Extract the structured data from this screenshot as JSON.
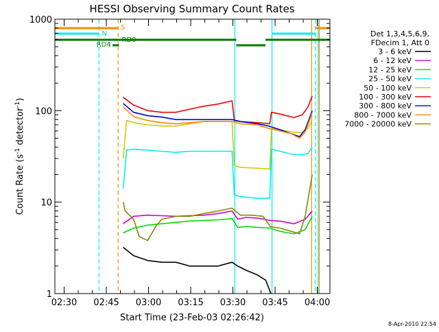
{
  "chart_data": {
    "type": "line",
    "title": "HESSI Observing Summary Count Rates",
    "xlabel": "Start Time (23-Feb-03 02:26:42)",
    "ylabel_main": "Count Rate (s",
    "ylabel_sup1": "-1",
    "ylabel_mid": " detector",
    "ylabel_sup2": "-1",
    "ylabel_end": ")",
    "footer": "8-Apr-2010 22:54",
    "x_ticks": [
      "02:30",
      "02:45",
      "03:00",
      "03:15",
      "03:30",
      "03:45",
      "04:00"
    ],
    "x_tick_minutes": [
      3.3,
      18.3,
      33.3,
      48.3,
      63.3,
      78.3,
      93.3
    ],
    "xlim_minutes": [
      0,
      97.8
    ],
    "y_scale": "log",
    "ylim": [
      1,
      1000
    ],
    "y_ticks": [
      "1",
      "10",
      "100",
      "1000"
    ],
    "y_tick_values": [
      1,
      10,
      100,
      1000
    ],
    "legend_header": [
      "Det 1,3,4,5,6,9,",
      "FDecim 1, Att 0"
    ],
    "legend_position": "right",
    "series": [
      {
        "name": "3 - 6 keV",
        "color": "#000000",
        "x": [
          24.3,
          28,
          33,
          38,
          43,
          48,
          53,
          58,
          63,
          65,
          68,
          72,
          75,
          76.8
        ],
        "y": [
          3.2,
          2.6,
          2.3,
          2.2,
          2.2,
          2.0,
          2.0,
          2.0,
          2.2,
          2.0,
          1.8,
          1.6,
          1.4,
          1.0
        ]
      },
      {
        "name": "6 - 12 keV",
        "color": "#cc00cc",
        "x": [
          24.3,
          28,
          33,
          38,
          43,
          48,
          53,
          58,
          63,
          65,
          68,
          72,
          76.6,
          80,
          85,
          89,
          91.5
        ],
        "y": [
          5.8,
          7.0,
          7.2,
          7.1,
          7.0,
          7.1,
          7.2,
          7.5,
          8.0,
          6.5,
          6.8,
          6.7,
          6.3,
          6.2,
          5.8,
          6.5,
          8.0
        ]
      },
      {
        "name": "12 - 25 keV",
        "color": "#00dd00",
        "x": [
          24.3,
          28,
          33,
          38,
          43,
          48,
          53,
          58,
          63,
          65,
          68,
          72,
          76.6,
          80,
          85,
          89,
          91.5
        ],
        "y": [
          4.6,
          5.2,
          5.6,
          5.8,
          6.0,
          6.2,
          6.3,
          6.4,
          6.6,
          5.3,
          5.4,
          5.3,
          5.2,
          4.8,
          4.5,
          5.0,
          7.0
        ]
      },
      {
        "name": "25 - 50 keV",
        "color": "#00eeee",
        "x": [
          24.3,
          25.5,
          28,
          33,
          38,
          43,
          48,
          53,
          58,
          63,
          63.8,
          66,
          72,
          76.4,
          77,
          80,
          85,
          88,
          90,
          91.5
        ],
        "y": [
          14,
          37,
          38,
          37,
          36,
          35,
          36,
          36,
          36,
          36,
          12,
          11.5,
          11.0,
          11.0,
          38,
          36,
          33,
          33,
          34,
          40
        ]
      },
      {
        "name": "50 - 100 keV",
        "color": "#cccc00",
        "x": [
          24.3,
          25.5,
          28,
          33,
          38,
          43,
          48,
          53,
          58,
          63,
          63.8,
          66,
          72,
          76.4,
          77,
          80,
          85,
          88,
          90,
          91.5
        ],
        "y": [
          30,
          78,
          74,
          70,
          68,
          68,
          72,
          76,
          76,
          76,
          25,
          24,
          23.5,
          23,
          64,
          62,
          58,
          58,
          64,
          80
        ]
      },
      {
        "name": "100 - 300 keV",
        "color": "#ee0000",
        "x": [
          24.3,
          28,
          33,
          38,
          43,
          48,
          53,
          58,
          63,
          63.8,
          66,
          72,
          76.4,
          77,
          80,
          85,
          88,
          90,
          91.5
        ],
        "y": [
          140,
          115,
          100,
          96,
          96,
          104,
          112,
          118,
          128,
          78,
          76,
          74,
          72,
          96,
          92,
          84,
          90,
          110,
          145
        ]
      },
      {
        "name": "300 - 800 keV",
        "color": "#0000cc",
        "x": [
          24.3,
          28,
          33,
          38,
          43,
          48,
          53,
          58,
          63,
          66,
          72,
          76,
          80,
          84,
          87,
          89,
          91.5
        ],
        "y": [
          120,
          96,
          88,
          85,
          80,
          80,
          80,
          80,
          80,
          76,
          72,
          68,
          62,
          56,
          52,
          62,
          100
        ]
      },
      {
        "name": "800 - 7000 keV",
        "color": "#ff8800",
        "x": [
          24.3,
          28,
          33,
          38,
          43,
          48,
          53,
          58,
          63,
          66,
          72,
          76,
          80,
          84,
          87,
          89,
          91.5
        ],
        "y": [
          110,
          86,
          78,
          74,
          72,
          74,
          76,
          76,
          76,
          72,
          70,
          64,
          60,
          56,
          50,
          58,
          95
        ]
      },
      {
        "name": "7000 - 20000 keV",
        "color": "#888800",
        "x": [
          24.3,
          25,
          28,
          30,
          33,
          36,
          38,
          43,
          48,
          53,
          58,
          63,
          66,
          70,
          74,
          76.6,
          80,
          84,
          87,
          89,
          91.5
        ],
        "y": [
          10,
          8,
          6.5,
          4.2,
          3.8,
          5.5,
          6.5,
          7.0,
          7.0,
          7.5,
          8.0,
          8.6,
          7.2,
          7.2,
          7.0,
          5.4,
          5.2,
          4.8,
          4.5,
          7.0,
          20
        ]
      }
    ],
    "attenuator_bars": [
      {
        "label": "S",
        "color": "#ff8800",
        "row": 0,
        "segments": [
          [
            0,
            22.5
          ],
          [
            92.8,
            97.8
          ]
        ]
      },
      {
        "label": "N",
        "color": "#00eeee",
        "row": 1,
        "segments": [
          [
            0,
            15.7
          ],
          [
            77.2,
            92.8
          ]
        ]
      },
      {
        "label": "RD4",
        "color": "#007700",
        "row": 2,
        "segments": [
          [
            0,
            22.5
          ],
          [
            22.5,
            64.5
          ],
          [
            64.5,
            74.9
          ],
          [
            74.9,
            97.8
          ]
        ]
      }
    ],
    "mode_labels": {
      "RD4": "RD4",
      "RD0": "RD0"
    },
    "vertical_markers": [
      {
        "minute": 15.7,
        "color": "#00eeee",
        "style": "dashed"
      },
      {
        "minute": 22.5,
        "color": "#ff8800",
        "style": "dashed"
      },
      {
        "minute": 64.0,
        "color": "#00eeee",
        "style": "solid"
      },
      {
        "minute": 77.2,
        "color": "#00eeee",
        "style": "solid"
      },
      {
        "minute": 91.3,
        "color": "#ff8800",
        "style": "solid"
      },
      {
        "minute": 92.6,
        "color": "#00eeee",
        "style": "dashed"
      },
      {
        "minute": 93.6,
        "color": "#00eeee",
        "style": "solid"
      },
      {
        "minute": 94.0,
        "color": "#ff8800",
        "style": "solid"
      }
    ]
  }
}
